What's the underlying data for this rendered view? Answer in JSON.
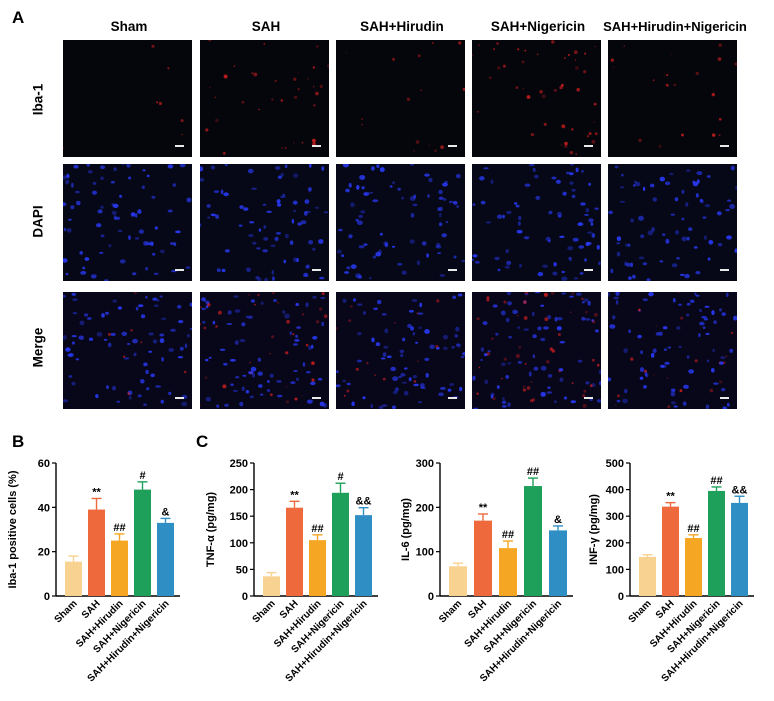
{
  "panelA": {
    "letter": "A",
    "columns": [
      "Sham",
      "SAH",
      "SAH+Hirudin",
      "SAH+Nigericin",
      "SAH+Hirudin+Nigericin"
    ],
    "rows": [
      "Iba-1",
      "DAPI",
      "Merge"
    ],
    "colors": {
      "iba": "#e02020",
      "dapi": "#2a3cff"
    },
    "iba_signal": [
      0.02,
      0.25,
      0.08,
      0.35,
      0.12
    ]
  },
  "panelB": {
    "letter": "B"
  },
  "panelC": {
    "letter": "C"
  },
  "colors": {
    "Sham": "#f8d290",
    "SAH": "#ee6a3c",
    "SAH+Hirudin": "#f5a623",
    "SAH+Nigericin": "#1fa05a",
    "SAH+Hirudin+Nigericin": "#2f8fc4"
  },
  "chart_data": [
    {
      "type": "bar",
      "panel": "B",
      "categories": [
        "Sham",
        "SAH",
        "SAH+Hirudin",
        "SAH+Nigericin",
        "SAH+Hirudin+Nigericin"
      ],
      "values": [
        15.5,
        39,
        25,
        48,
        33
      ],
      "errors": [
        2.5,
        5,
        3,
        3.5,
        2
      ],
      "annotations": [
        "",
        "**",
        "##",
        "#",
        "&"
      ],
      "ylabel": "Iba-1 positive cells (%)",
      "ylim": [
        0,
        60
      ],
      "yticks": [
        0,
        20,
        40,
        60
      ]
    },
    {
      "type": "bar",
      "panel": "C",
      "categories": [
        "Sham",
        "SAH",
        "SAH+Hirudin",
        "SAH+Nigericin",
        "SAH+Hirudin+Nigericin"
      ],
      "values": [
        37,
        166,
        105,
        194,
        152
      ],
      "errors": [
        7,
        12,
        10,
        18,
        14
      ],
      "annotations": [
        "",
        "**",
        "##",
        "#",
        "&&"
      ],
      "ylabel": "TNF-α  (pg/mg)",
      "ylim": [
        0,
        250
      ],
      "yticks": [
        0,
        50,
        100,
        150,
        200,
        250
      ]
    },
    {
      "type": "bar",
      "panel": "C",
      "categories": [
        "Sham",
        "SAH",
        "SAH+Hirudin",
        "SAH+Nigericin",
        "SAH+Hirudin+Nigericin"
      ],
      "values": [
        67,
        170,
        108,
        248,
        148
      ],
      "errors": [
        7,
        15,
        16,
        18,
        10
      ],
      "annotations": [
        "",
        "**",
        "##",
        "##",
        "&"
      ],
      "ylabel": "IL-6 (pg/mg)",
      "ylim": [
        0,
        300
      ],
      "yticks": [
        0,
        100,
        200,
        300
      ]
    },
    {
      "type": "bar",
      "panel": "C",
      "categories": [
        "Sham",
        "SAH",
        "SAH+Hirudin",
        "SAH+Nigericin",
        "SAH+Hirudin+Nigericin"
      ],
      "values": [
        147,
        336,
        218,
        395,
        350
      ],
      "errors": [
        8,
        15,
        12,
        15,
        25
      ],
      "annotations": [
        "",
        "**",
        "##",
        "##",
        "&&"
      ],
      "ylabel": "INF-γ (pg/mg)",
      "ylim": [
        0,
        500
      ],
      "yticks": [
        0,
        100,
        200,
        300,
        400,
        500
      ]
    }
  ]
}
